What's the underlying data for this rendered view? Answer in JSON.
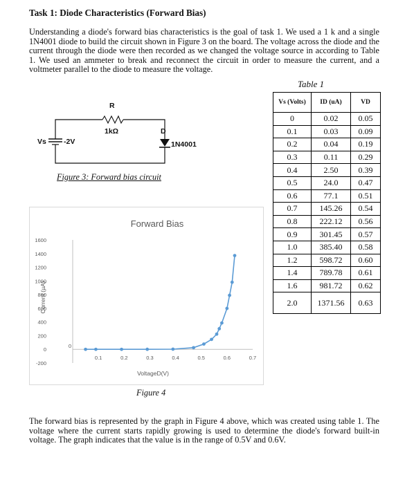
{
  "heading": "Task 1: Diode Characteristics (Forward Bias)",
  "intro_paragraph": "Understanding a diode's forward bias characteristics is the goal of task 1. We used a 1 k and a single 1N4001 diode to build the circuit shown in Figure 3 on the board. The voltage across the diode and the current through the diode were then recorded as we changed the voltage source in according to Table 1. We used an ammeter to break and reconnect the circuit in order to measure the current, and a voltmeter parallel to the diode to measure the voltage.",
  "circuit": {
    "resistor_label": "R",
    "resistor_value": "1kΩ",
    "source_label": "Vs",
    "source_value": "-2V",
    "diode_label": "D",
    "diode_part": "1N4001",
    "caption": "Figure 3: Forward bias circuit"
  },
  "table": {
    "caption": "Table 1",
    "headers": [
      "Vs (Volts)",
      "ID (uA)",
      "VD"
    ],
    "rows": [
      [
        "0",
        "0.02",
        "0.05"
      ],
      [
        "0.1",
        "0.03",
        "0.09"
      ],
      [
        "0.2",
        "0.04",
        "0.19"
      ],
      [
        "0.3",
        "0.11",
        "0.29"
      ],
      [
        "0.4",
        "2.50",
        "0.39"
      ],
      [
        "0.5",
        "24.0",
        "0.47"
      ],
      [
        "0.6",
        "77.1",
        "0.51"
      ],
      [
        "0.7",
        "145.26",
        "0.54"
      ],
      [
        "0.8",
        "222.12",
        "0.56"
      ],
      [
        "0.9",
        "301.45",
        "0.57"
      ],
      [
        "1.0",
        "385.40",
        "0.58"
      ],
      [
        "1.2",
        "598.72",
        "0.60"
      ],
      [
        "1.4",
        "789.78",
        "0.61"
      ],
      [
        "1.6",
        "981.72",
        "0.62"
      ],
      [
        "2.0",
        "1371.56",
        "0.63"
      ]
    ]
  },
  "chart_data": {
    "type": "scatter",
    "title": "Forward Bias",
    "xlabel": "VoltageD(V)",
    "ylabel": "Current (µA)",
    "xlim": [
      0,
      0.7
    ],
    "ylim": [
      -200,
      1600
    ],
    "xticks": [
      "0",
      "0.1",
      "0.2",
      "0.3",
      "0.4",
      "0.5",
      "0.6",
      "0.7"
    ],
    "yticks": [
      "-200",
      "0",
      "200",
      "400",
      "600",
      "800",
      "1000",
      "1200",
      "1400",
      "1600"
    ],
    "grid": false,
    "color": "#5b9bd5",
    "series": [
      {
        "x": [
          0.05,
          0.09,
          0.19,
          0.29,
          0.39,
          0.47,
          0.51,
          0.54,
          0.56,
          0.57,
          0.58,
          0.6,
          0.61,
          0.62,
          0.63
        ],
        "y": [
          0.02,
          0.03,
          0.04,
          0.11,
          2.5,
          24.0,
          77.1,
          145.26,
          222.12,
          301.45,
          385.4,
          598.72,
          789.78,
          981.72,
          1371.56
        ]
      }
    ]
  },
  "figure4_caption": "Figure 4",
  "closing_paragraph": "The forward bias is represented by the graph in Figure 4 above, which was created using table 1. The voltage where the current starts rapidly growing is used to determine the diode's forward built-in voltage. The graph indicates that the value is in the range of 0.5V and 0.6V."
}
